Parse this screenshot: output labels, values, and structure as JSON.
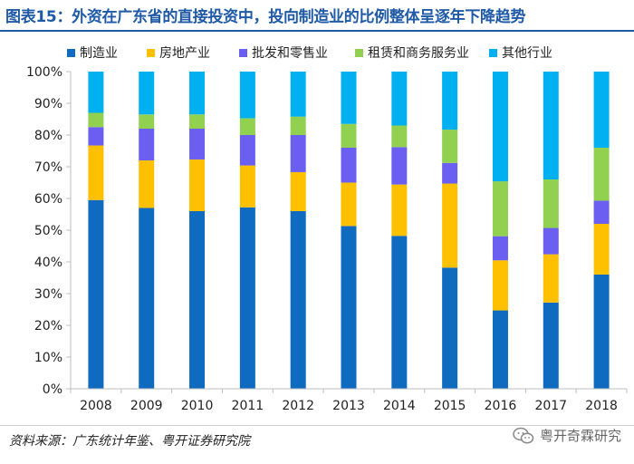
{
  "title": "图表15：外资在广东省的直接投资中，投向制造业的比例整体呈逐年下降趋势",
  "source": "资料来源：广东统计年鉴、粤开证券研究院",
  "watermark": "粤开奇霖研究",
  "colors": {
    "title": "#1f5aa6",
    "manufacturing": "#0e6bbf",
    "real_estate": "#ffc000",
    "wholesale_retail": "#6a5ff0",
    "leasing_services": "#92d050",
    "other": "#00b0f0"
  },
  "chart_data": {
    "type": "bar",
    "stacked": true,
    "title": "",
    "xlabel": "",
    "ylabel": "",
    "ylim": [
      0,
      100
    ],
    "yticks": [
      "0%",
      "10%",
      "20%",
      "30%",
      "40%",
      "50%",
      "60%",
      "70%",
      "80%",
      "90%",
      "100%"
    ],
    "legend_position": "top",
    "categories": [
      "2008",
      "2009",
      "2010",
      "2011",
      "2012",
      "2013",
      "2014",
      "2015",
      "2016",
      "2017",
      "2018"
    ],
    "series": [
      {
        "name": "制造业",
        "color": "#0e6bbf",
        "values": [
          59.5,
          57,
          56,
          57.2,
          56,
          51.3,
          48.2,
          38.2,
          24.7,
          27.2,
          36
        ]
      },
      {
        "name": "房地产业",
        "color": "#ffc000",
        "values": [
          17.2,
          15,
          16.3,
          13.2,
          12.3,
          13.7,
          16.2,
          26.5,
          15.8,
          15.2,
          16
        ]
      },
      {
        "name": "批发和零售业",
        "color": "#6a5ff0",
        "values": [
          5.8,
          10,
          9.7,
          9.6,
          11.7,
          11,
          11.8,
          6.5,
          7.6,
          8.3,
          7.3
        ]
      },
      {
        "name": "租赁和商务服务业",
        "color": "#92d050",
        "values": [
          4.5,
          4.5,
          4.5,
          5.3,
          5.8,
          7.5,
          6.8,
          10.5,
          17.3,
          15.3,
          16.7
        ]
      },
      {
        "name": "其他行业",
        "color": "#00b0f0",
        "values": [
          13,
          13.5,
          13.5,
          14.7,
          14.2,
          16.5,
          17,
          18.3,
          34.6,
          34,
          24
        ]
      }
    ]
  }
}
